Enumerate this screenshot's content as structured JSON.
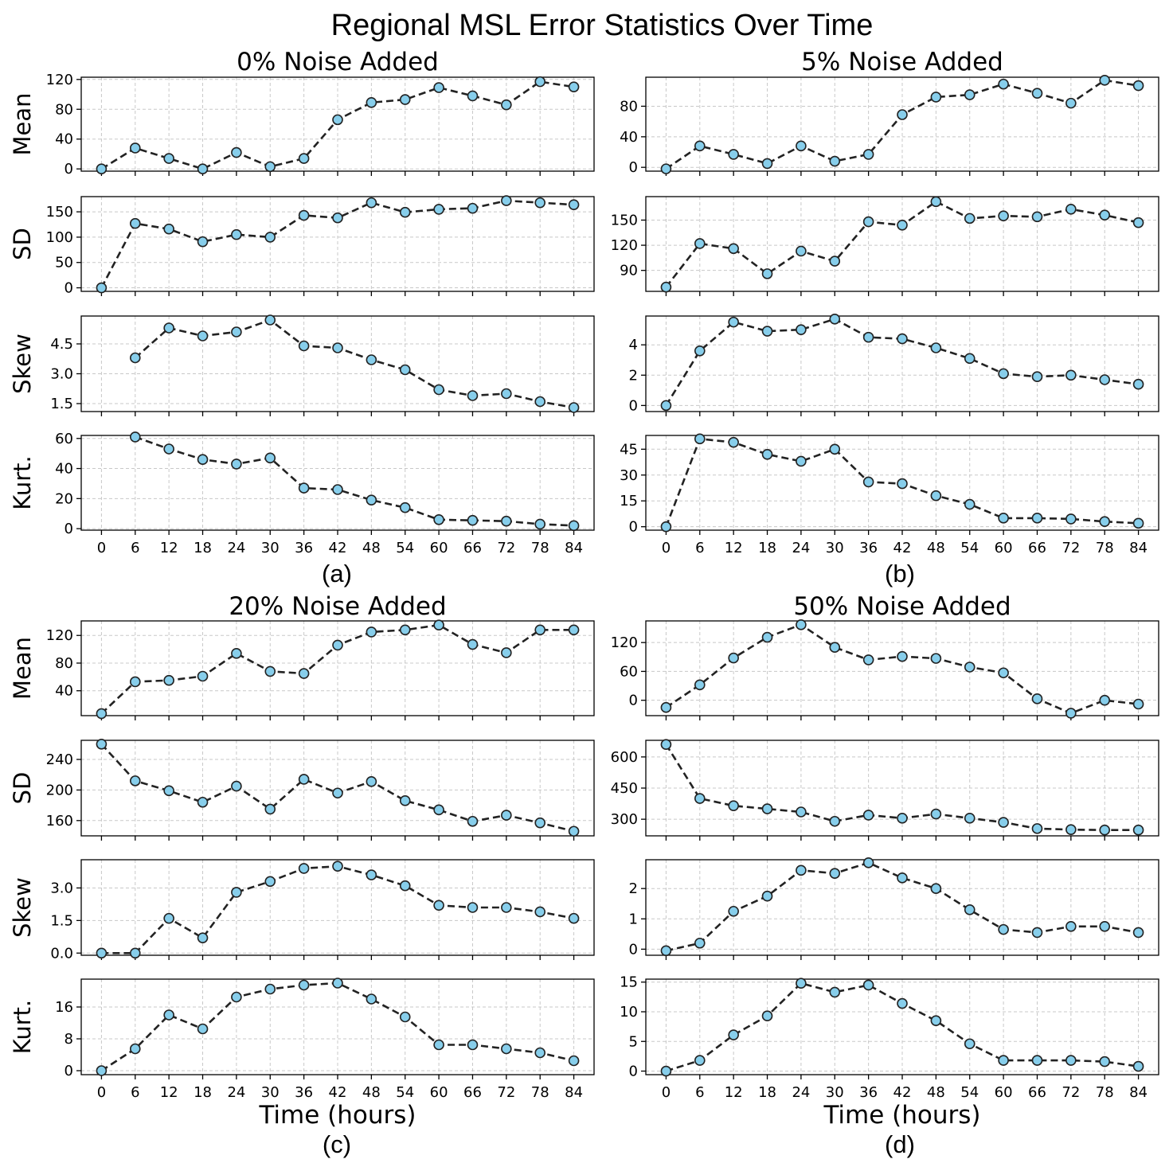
{
  "figure": {
    "title": "Regional MSL Error Statistics Over Time",
    "marker_color": "#87CEEB",
    "line_color": "#222222"
  },
  "chart_data": [
    {
      "type": "line",
      "panel": "(a)",
      "title": "0% Noise Added",
      "xlabel": "",
      "x": [
        0,
        6,
        12,
        18,
        24,
        30,
        36,
        42,
        48,
        54,
        60,
        66,
        72,
        78,
        84
      ],
      "xticks": [
        "0",
        "6",
        "12",
        "18",
        "24",
        "30",
        "36",
        "42",
        "48",
        "54",
        "60",
        "66",
        "72",
        "78",
        "84"
      ],
      "subplots": [
        {
          "ylabel": "Mean",
          "ylim": [
            -3,
            123
          ],
          "yticks": [
            0,
            40,
            80,
            120
          ],
          "ytick_labels": [
            "0",
            "40",
            "80",
            "120"
          ],
          "values": [
            0,
            28,
            14,
            0,
            22,
            3,
            14,
            66,
            89,
            93,
            109,
            98,
            86,
            117,
            110
          ]
        },
        {
          "ylabel": "SD",
          "ylim": [
            -7,
            180
          ],
          "yticks": [
            0,
            50,
            100,
            150
          ],
          "ytick_labels": [
            "0",
            "50",
            "100",
            "150"
          ],
          "values": [
            0,
            127,
            116,
            91,
            105,
            100,
            143,
            138,
            168,
            149,
            155,
            157,
            172,
            168,
            164
          ]
        },
        {
          "ylabel": "Skew",
          "ylim": [
            1.1,
            5.9
          ],
          "yticks": [
            1.5,
            3.0,
            4.5
          ],
          "ytick_labels": [
            "1.5",
            "3.0",
            "4.5"
          ],
          "values": [
            null,
            3.8,
            5.3,
            4.9,
            5.1,
            5.7,
            4.4,
            4.3,
            3.7,
            3.2,
            2.2,
            1.9,
            2.0,
            1.6,
            1.3
          ]
        },
        {
          "ylabel": "Kurt.",
          "ylim": [
            -1,
            62
          ],
          "yticks": [
            0,
            20,
            40,
            60
          ],
          "ytick_labels": [
            "0",
            "20",
            "40",
            "60"
          ],
          "values": [
            null,
            61,
            53,
            46,
            43,
            47,
            27,
            26,
            19,
            14,
            6,
            5.5,
            5,
            3,
            2
          ]
        }
      ]
    },
    {
      "type": "line",
      "panel": "(b)",
      "title": "5% Noise Added",
      "xlabel": "",
      "x": [
        0,
        6,
        12,
        18,
        24,
        30,
        36,
        42,
        48,
        54,
        60,
        66,
        72,
        78,
        84
      ],
      "xticks": [
        "0",
        "6",
        "12",
        "18",
        "24",
        "30",
        "36",
        "42",
        "48",
        "54",
        "60",
        "66",
        "72",
        "78",
        "84"
      ],
      "subplots": [
        {
          "ylabel": "",
          "ylim": [
            -5,
            118
          ],
          "yticks": [
            0,
            40,
            80
          ],
          "ytick_labels": [
            "0",
            "40",
            "80"
          ],
          "values": [
            -2,
            28,
            17,
            5,
            28,
            8,
            17,
            69,
            92,
            95,
            109,
            97,
            84,
            114,
            107
          ]
        },
        {
          "ylabel": "",
          "ylim": [
            65,
            178
          ],
          "yticks": [
            90,
            120,
            150
          ],
          "ytick_labels": [
            "90",
            "120",
            "150"
          ],
          "values": [
            70,
            122,
            116,
            86,
            113,
            101,
            148,
            144,
            172,
            152,
            155,
            154,
            163,
            156,
            147
          ]
        },
        {
          "ylabel": "",
          "ylim": [
            -0.4,
            5.9
          ],
          "yticks": [
            0,
            2,
            4
          ],
          "ytick_labels": [
            "0",
            "2",
            "4"
          ],
          "values": [
            0,
            3.6,
            5.5,
            4.9,
            5.0,
            5.7,
            4.5,
            4.4,
            3.8,
            3.1,
            2.1,
            1.9,
            2.0,
            1.7,
            1.4
          ]
        },
        {
          "ylabel": "",
          "ylim": [
            -2,
            53
          ],
          "yticks": [
            0,
            15,
            30,
            45
          ],
          "ytick_labels": [
            "0",
            "15",
            "30",
            "45"
          ],
          "values": [
            0,
            51,
            49,
            42,
            38,
            45,
            26,
            25,
            18,
            13,
            5,
            5,
            4.5,
            3,
            2
          ]
        }
      ]
    },
    {
      "type": "line",
      "panel": "(c)",
      "title": "20% Noise Added",
      "xlabel": "Time (hours)",
      "x": [
        0,
        6,
        12,
        18,
        24,
        30,
        36,
        42,
        48,
        54,
        60,
        66,
        72,
        78,
        84
      ],
      "xticks": [
        "0",
        "6",
        "12",
        "18",
        "24",
        "30",
        "36",
        "42",
        "48",
        "54",
        "60",
        "66",
        "72",
        "78",
        "84"
      ],
      "subplots": [
        {
          "ylabel": "Mean",
          "ylim": [
            4,
            141
          ],
          "yticks": [
            40,
            80,
            120
          ],
          "ytick_labels": [
            "40",
            "80",
            "120"
          ],
          "values": [
            7,
            53,
            55,
            61,
            94,
            68,
            65,
            106,
            125,
            128,
            135,
            107,
            95,
            128,
            128
          ]
        },
        {
          "ylabel": "SD",
          "ylim": [
            140,
            265
          ],
          "yticks": [
            160,
            200,
            240
          ],
          "ytick_labels": [
            "160",
            "200",
            "240"
          ],
          "values": [
            260,
            212,
            199,
            184,
            205,
            175,
            214,
            196,
            211,
            186,
            174,
            159,
            167,
            157,
            146
          ]
        },
        {
          "ylabel": "Skew",
          "ylim": [
            -0.1,
            4.3
          ],
          "yticks": [
            0.0,
            1.5,
            3.0
          ],
          "ytick_labels": [
            "0.0",
            "1.5",
            "3.0"
          ],
          "values": [
            0,
            0,
            1.6,
            0.7,
            2.8,
            3.3,
            3.9,
            4.0,
            3.6,
            3.1,
            2.2,
            2.1,
            2.1,
            1.9,
            1.6
          ]
        },
        {
          "ylabel": "Kurt.",
          "ylim": [
            -1,
            23
          ],
          "yticks": [
            0,
            8,
            16
          ],
          "ytick_labels": [
            "0",
            "8",
            "16"
          ],
          "values": [
            0,
            5.5,
            14,
            10.5,
            18.5,
            20.5,
            21.5,
            22,
            18,
            13.5,
            6.5,
            6.5,
            5.5,
            4.5,
            2.5
          ]
        }
      ]
    },
    {
      "type": "line",
      "panel": "(d)",
      "title": "50% Noise Added",
      "xlabel": "Time (hours)",
      "x": [
        0,
        6,
        12,
        18,
        24,
        30,
        36,
        42,
        48,
        54,
        60,
        66,
        72,
        78,
        84
      ],
      "xticks": [
        "0",
        "6",
        "12",
        "18",
        "24",
        "30",
        "36",
        "42",
        "48",
        "54",
        "60",
        "66",
        "72",
        "78",
        "84"
      ],
      "subplots": [
        {
          "ylabel": "",
          "ylim": [
            -32,
            165
          ],
          "yticks": [
            0,
            60,
            120
          ],
          "ytick_labels": [
            "0",
            "60",
            "120"
          ],
          "values": [
            -15,
            32,
            88,
            131,
            157,
            110,
            84,
            91,
            87,
            69,
            57,
            3,
            -27,
            0,
            -8
          ]
        },
        {
          "ylabel": "",
          "ylim": [
            220,
            680
          ],
          "yticks": [
            300,
            450,
            600
          ],
          "ytick_labels": [
            "300",
            "450",
            "600"
          ],
          "values": [
            660,
            400,
            365,
            350,
            335,
            290,
            320,
            305,
            325,
            305,
            285,
            255,
            250,
            248,
            248
          ]
        },
        {
          "ylabel": "",
          "ylim": [
            -0.2,
            2.95
          ],
          "yticks": [
            0,
            1,
            2
          ],
          "ytick_labels": [
            "0",
            "1",
            "2"
          ],
          "values": [
            -0.05,
            0.2,
            1.25,
            1.75,
            2.6,
            2.5,
            2.85,
            2.35,
            2.0,
            1.3,
            0.65,
            0.55,
            0.75,
            0.75,
            0.55
          ]
        },
        {
          "ylabel": "",
          "ylim": [
            -0.6,
            15.5
          ],
          "yticks": [
            0,
            5,
            10,
            15
          ],
          "ytick_labels": [
            "0",
            "5",
            "10",
            "15"
          ],
          "values": [
            0,
            1.8,
            6.1,
            9.3,
            14.8,
            13.3,
            14.5,
            11.4,
            8.5,
            4.6,
            1.8,
            1.8,
            1.8,
            1.6,
            0.8
          ]
        }
      ]
    }
  ]
}
